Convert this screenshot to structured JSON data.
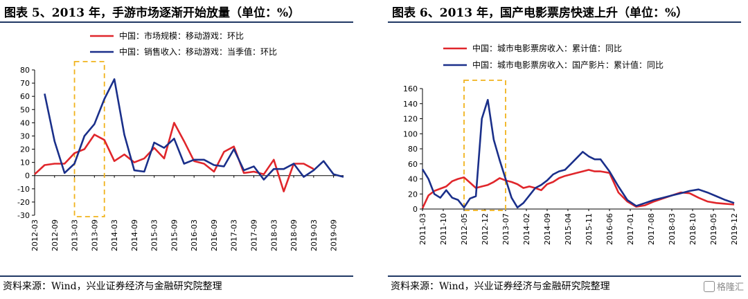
{
  "charts": [
    {
      "title": "图表 5、2013 年，手游市场逐渐开始放量（单位：%）",
      "source": "资料来源：Wind，兴业证券经济与金融研究院整理"
    },
    {
      "title": "图表 6、2013 年，国产电影票房快速上升（单位：%）",
      "source": "资料来源：Wind，兴业证券经济与金融研究院整理"
    }
  ],
  "watermark": "格隆汇",
  "colors": {
    "red_series": "#e0262b",
    "blue_series": "#1a2f8a",
    "highlight_box": "#f0b21b",
    "rule": "#1f3864"
  },
  "chart_data": [
    {
      "type": "line",
      "title": "",
      "ylim": [
        -30,
        80
      ],
      "yticks": [
        -30,
        -20,
        -10,
        0,
        10,
        20,
        30,
        40,
        50,
        60,
        70,
        80
      ],
      "xtick_labels": [
        "2012-03",
        "2012-09",
        "2013-03",
        "2013-09",
        "2014-03",
        "2014-09",
        "2015-03",
        "2015-09",
        "2016-03",
        "2016-09",
        "2017-03",
        "2017-09",
        "2018-03",
        "2018-09",
        "2019-03",
        "2019-09"
      ],
      "x_start": "2012-03",
      "x_end": "2019-12",
      "legend_position": "top",
      "highlight_range": [
        "2013-03",
        "2013-12"
      ],
      "series": [
        {
          "name": "中国：市场规模：移动游戏：环比",
          "color": "#e0262b",
          "x": [
            "2012-03",
            "2012-06",
            "2012-09",
            "2012-12",
            "2013-03",
            "2013-06",
            "2013-09",
            "2013-12",
            "2014-03",
            "2014-06",
            "2014-09",
            "2014-12",
            "2015-03",
            "2015-06",
            "2015-09",
            "2015-12",
            "2016-03",
            "2016-06",
            "2016-09",
            "2016-12",
            "2017-03",
            "2017-06",
            "2017-09",
            "2017-12",
            "2018-03",
            "2018-06",
            "2018-09",
            "2018-12",
            "2019-03"
          ],
          "y": [
            1,
            8,
            9,
            9,
            17,
            20,
            31,
            27,
            11,
            16,
            10,
            13,
            21,
            13,
            40,
            26,
            11,
            9,
            3,
            18,
            22,
            2,
            3,
            1,
            12,
            -12,
            9,
            9,
            5
          ]
        },
        {
          "name": "中国：销售收入：移动游戏：当季值：环比",
          "color": "#1a2f8a",
          "x": [
            "2012-06",
            "2012-09",
            "2012-12",
            "2013-03",
            "2013-06",
            "2013-09",
            "2013-12",
            "2014-03",
            "2014-06",
            "2014-09",
            "2014-12",
            "2015-03",
            "2015-06",
            "2015-09",
            "2015-12",
            "2016-03",
            "2016-06",
            "2016-09",
            "2016-12",
            "2017-03",
            "2017-06",
            "2017-09",
            "2017-12",
            "2018-03",
            "2018-06",
            "2018-09",
            "2018-12",
            "2019-03",
            "2019-06",
            "2019-09",
            "2019-12"
          ],
          "y": [
            62,
            26,
            2,
            9,
            30,
            39,
            58,
            73,
            31,
            4,
            3,
            25,
            21,
            28,
            9,
            12,
            12,
            8,
            7,
            20,
            4,
            7,
            -3,
            5,
            5,
            9,
            -1,
            4,
            11,
            1,
            -1
          ]
        }
      ]
    },
    {
      "type": "line",
      "title": "",
      "ylim": [
        0,
        160
      ],
      "yticks": [
        0,
        20,
        40,
        60,
        80,
        100,
        120,
        140,
        160
      ],
      "xtick_labels": [
        "2011-03",
        "2011-10",
        "2012-05",
        "2012-12",
        "2013-07",
        "2014-02",
        "2014-09",
        "2015-04",
        "2015-11",
        "2016-06",
        "2017-01",
        "2017-08",
        "2018-03",
        "2018-10",
        "2019-05",
        "2019-12"
      ],
      "x_start": "2011-03",
      "x_end": "2019-12",
      "legend_position": "top",
      "highlight_range": [
        "2012-05",
        "2013-07"
      ],
      "series": [
        {
          "name": "中国：城市电影票房收入：累计值：同比",
          "color": "#e0262b",
          "x": [
            "2011-03",
            "2011-05",
            "2011-07",
            "2011-09",
            "2011-11",
            "2012-01",
            "2012-03",
            "2012-05",
            "2012-07",
            "2012-09",
            "2012-11",
            "2013-01",
            "2013-03",
            "2013-05",
            "2013-07",
            "2013-09",
            "2013-11",
            "2014-01",
            "2014-03",
            "2014-05",
            "2014-07",
            "2014-09",
            "2014-11",
            "2015-01",
            "2015-03",
            "2015-05",
            "2015-07",
            "2015-09",
            "2015-11",
            "2016-01",
            "2016-03",
            "2016-06",
            "2016-09",
            "2016-12",
            "2017-03",
            "2017-06",
            "2017-09",
            "2017-12",
            "2018-03",
            "2018-06",
            "2018-09",
            "2018-12",
            "2019-03",
            "2019-06",
            "2019-09",
            "2019-12"
          ],
          "y": [
            1,
            18,
            24,
            27,
            30,
            37,
            40,
            42,
            35,
            28,
            30,
            32,
            36,
            41,
            38,
            36,
            33,
            28,
            30,
            28,
            25,
            33,
            36,
            41,
            44,
            46,
            48,
            50,
            52,
            50,
            50,
            48,
            22,
            10,
            3,
            5,
            10,
            14,
            18,
            22,
            21,
            15,
            10,
            8,
            7,
            6
          ]
        },
        {
          "name": "中国：城市电影票房收入：国产影片：累计值：同比",
          "color": "#1a2f8a",
          "x": [
            "2011-03",
            "2011-05",
            "2011-07",
            "2011-09",
            "2011-11",
            "2012-01",
            "2012-03",
            "2012-05",
            "2012-07",
            "2012-09",
            "2012-11",
            "2013-01",
            "2013-03",
            "2013-05",
            "2013-07",
            "2013-09",
            "2013-11",
            "2014-01",
            "2014-03",
            "2014-05",
            "2014-07",
            "2014-09",
            "2014-11",
            "2015-01",
            "2015-03",
            "2015-05",
            "2015-07",
            "2015-09",
            "2015-11",
            "2016-01",
            "2016-03",
            "2016-06",
            "2016-09",
            "2016-12",
            "2017-03",
            "2017-06",
            "2017-09",
            "2017-12",
            "2018-03",
            "2018-06",
            "2018-09",
            "2018-12",
            "2019-03",
            "2019-06",
            "2019-09",
            "2019-12"
          ],
          "y": [
            53,
            40,
            20,
            15,
            25,
            15,
            12,
            2,
            14,
            17,
            120,
            145,
            92,
            65,
            40,
            15,
            2,
            8,
            18,
            28,
            32,
            38,
            46,
            50,
            52,
            60,
            68,
            76,
            70,
            66,
            66,
            50,
            30,
            12,
            4,
            8,
            12,
            15,
            18,
            21,
            24,
            26,
            22,
            17,
            12,
            8
          ]
        }
      ]
    }
  ]
}
